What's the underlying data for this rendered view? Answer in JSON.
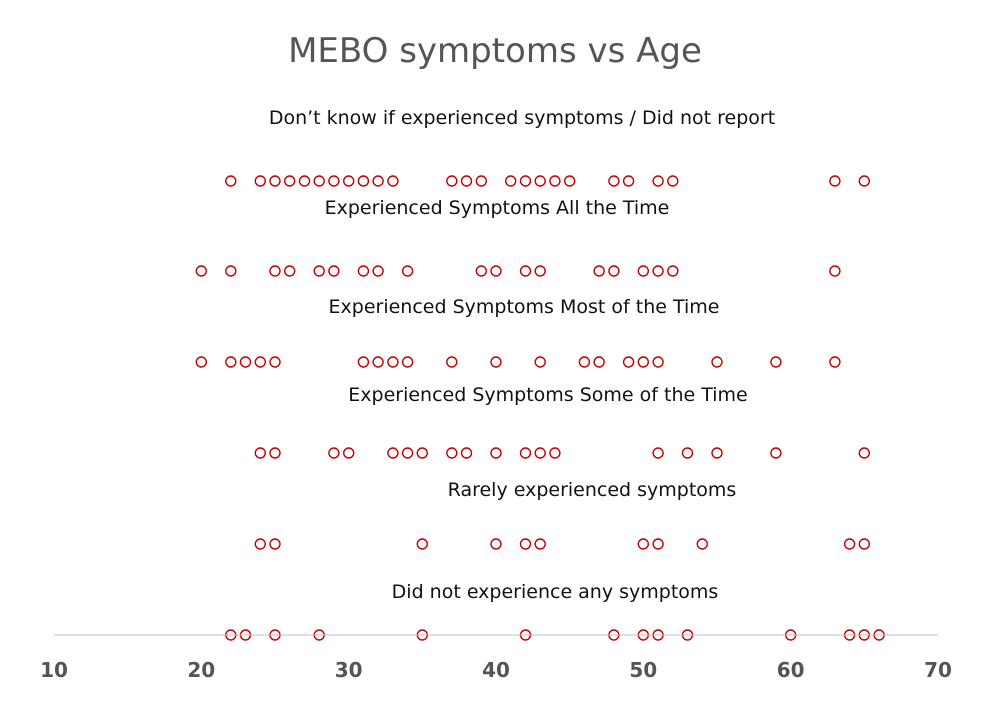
{
  "chart_data": {
    "type": "scatter",
    "title": "MEBO symptoms vs Age",
    "xlim": [
      10,
      70
    ],
    "xticks": [
      "10",
      "20",
      "30",
      "40",
      "50",
      "60",
      "70"
    ],
    "marker": "open-circle",
    "colors": {
      "marker": "#c00000",
      "axis": "#bfbfbf",
      "title": "#555555",
      "ticks": "#555555"
    },
    "series": [
      {
        "name": "Don’t know if experienced symptoms / Did not report",
        "x": [
          22,
          24,
          25,
          26,
          27,
          28,
          29,
          30,
          31,
          32,
          33,
          37,
          38,
          39,
          41,
          42,
          43,
          44,
          45,
          48,
          49,
          51,
          52,
          63,
          65
        ]
      },
      {
        "name": "Experienced Symptoms All the Time",
        "x": [
          20,
          22,
          25,
          26,
          28,
          29,
          31,
          32,
          34,
          39,
          40,
          42,
          43,
          47,
          48,
          50,
          51,
          52,
          63
        ]
      },
      {
        "name": "Experienced Symptoms Most of the Time",
        "x": [
          20,
          22,
          23,
          24,
          25,
          31,
          32,
          33,
          34,
          37,
          40,
          43,
          46,
          47,
          49,
          50,
          51,
          55,
          59,
          63
        ]
      },
      {
        "name": "Experienced Symptoms Some of the Time",
        "x": [
          24,
          25,
          29,
          30,
          33,
          34,
          35,
          37,
          38,
          40,
          42,
          43,
          44,
          51,
          53,
          55,
          59,
          65
        ]
      },
      {
        "name": "Rarely experienced symptoms",
        "x": [
          24,
          25,
          35,
          40,
          42,
          43,
          50,
          51,
          54,
          64,
          65
        ]
      },
      {
        "name": "Did not experience any symptoms",
        "x": [
          22,
          23,
          25,
          28,
          35,
          42,
          48,
          50,
          51,
          53,
          60,
          64,
          65,
          66
        ]
      }
    ]
  }
}
